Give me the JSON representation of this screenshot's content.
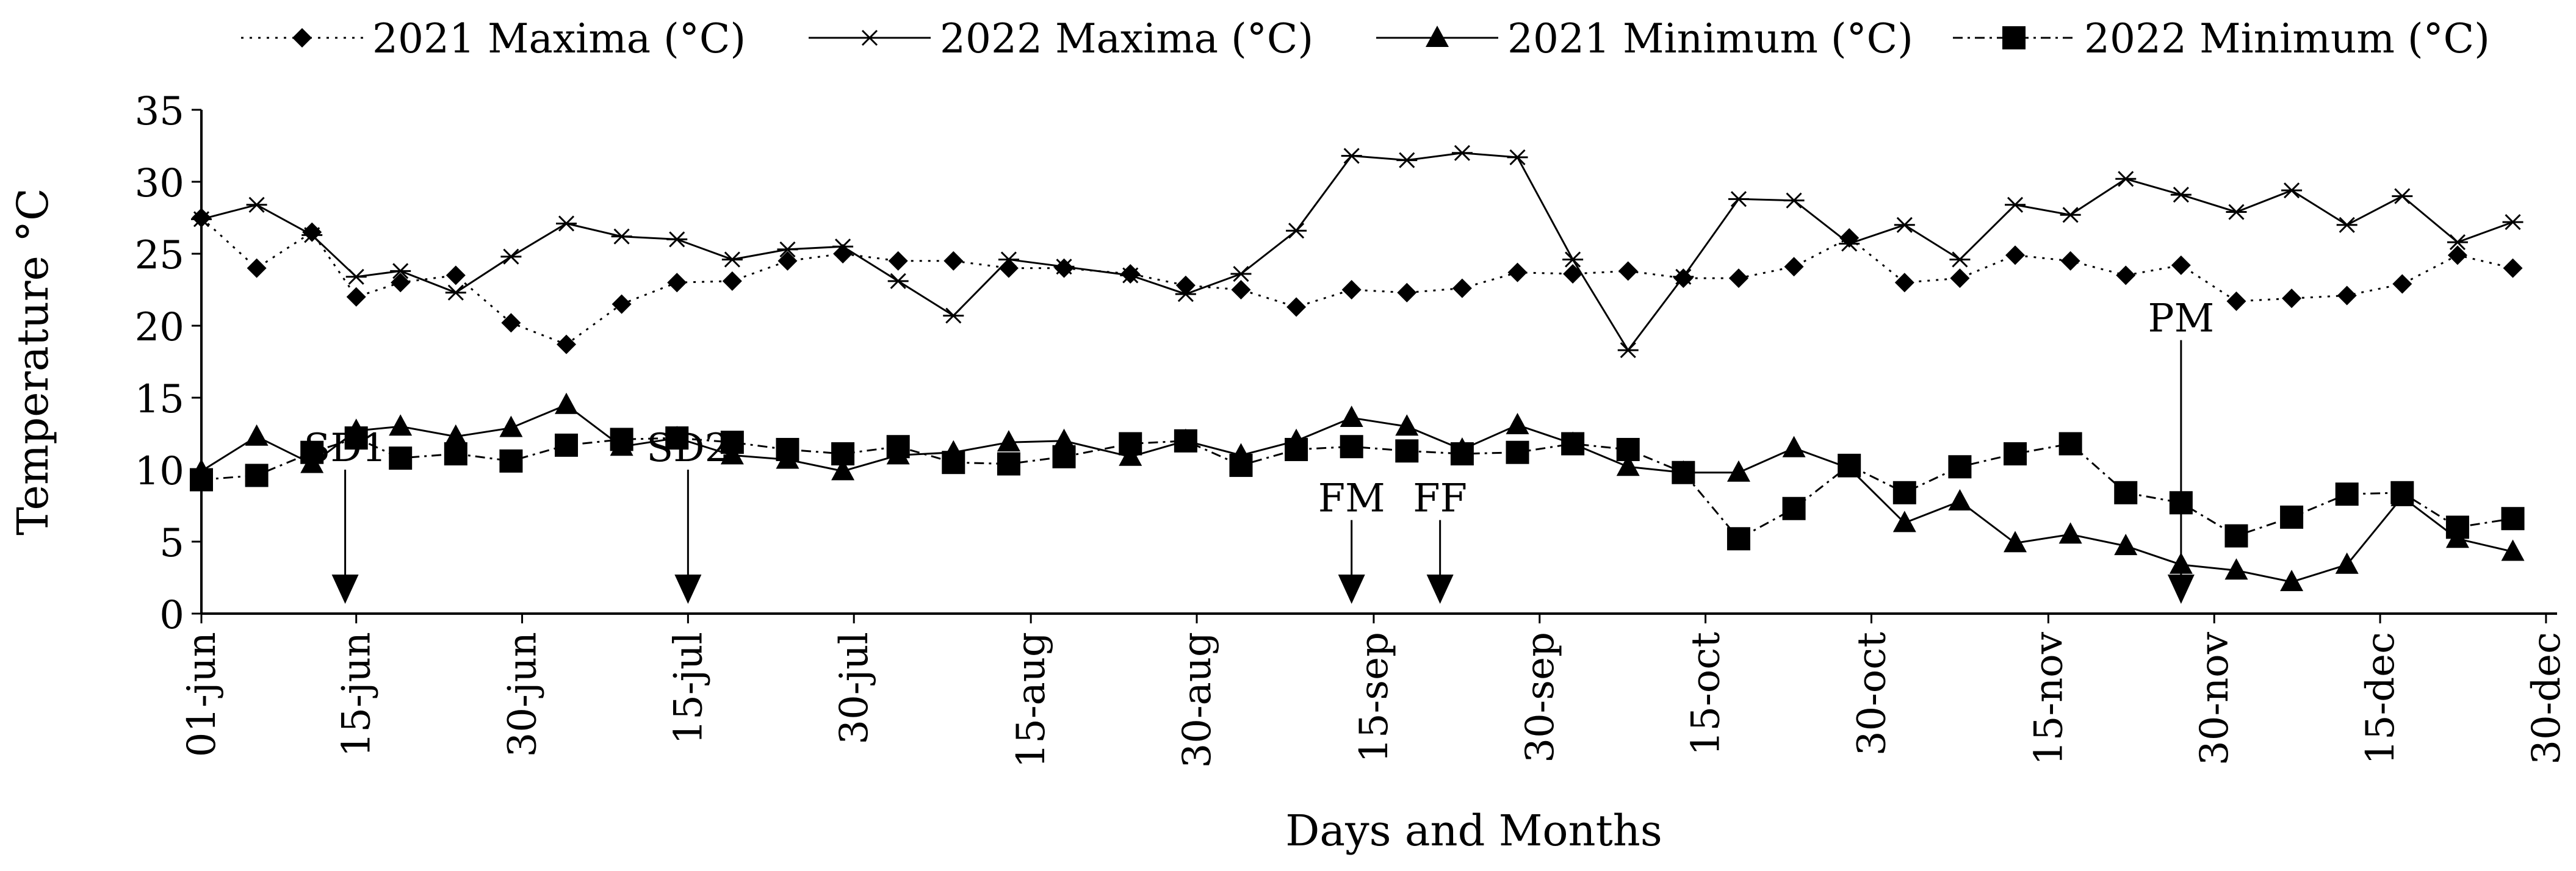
{
  "chart_data": {
    "type": "line",
    "title": "",
    "xlabel": "Days and Months",
    "ylabel": "Temperature °C",
    "ylim": [
      0,
      35
    ],
    "yticks": [
      0,
      5,
      10,
      15,
      20,
      25,
      30,
      35
    ],
    "x_tick_labels": [
      "01-jun",
      "15-jun",
      "30-jun",
      "15-jul",
      "30-jul",
      "15-aug",
      "30-aug",
      "15-sep",
      "30-sep",
      "15-oct",
      "30-oct",
      "15-nov",
      "30-nov",
      "15-dec",
      "30-dec"
    ],
    "x_tick_days": [
      0,
      14,
      29,
      44,
      59,
      75,
      90,
      106,
      121,
      136,
      151,
      167,
      182,
      197,
      212
    ],
    "xlim": [
      0,
      213
    ],
    "legend_position": "top",
    "series": [
      {
        "name": "2021 Maxima (°C)",
        "marker": "diamond",
        "line": "dotted",
        "days": [
          0,
          5,
          10,
          14,
          18,
          23,
          28,
          33,
          38,
          43,
          48,
          53,
          58,
          63,
          68,
          73,
          78,
          84,
          89,
          94,
          99,
          104,
          109,
          114,
          119,
          124,
          129,
          134,
          139,
          144,
          149,
          154,
          159,
          164,
          169,
          174,
          179,
          184,
          189,
          194,
          199,
          204,
          209
        ],
        "values": [
          27.5,
          24.0,
          26.5,
          22.0,
          23.0,
          23.5,
          20.2,
          18.7,
          21.5,
          23.0,
          23.1,
          24.5,
          25.0,
          24.5,
          24.5,
          24.0,
          24.0,
          23.6,
          22.8,
          22.5,
          21.3,
          22.5,
          22.3,
          22.6,
          23.7,
          23.6,
          23.8,
          23.3,
          23.3,
          24.1,
          26.1,
          23.0,
          23.3,
          24.9,
          24.5,
          23.5,
          24.2,
          21.7,
          21.9,
          22.1,
          22.9,
          24.9,
          24.0
        ]
      },
      {
        "name": "2022 Maxima (°C)",
        "marker": "star",
        "line": "solid",
        "days": [
          0,
          5,
          10,
          14,
          18,
          23,
          28,
          33,
          38,
          43,
          48,
          53,
          58,
          63,
          68,
          73,
          78,
          84,
          89,
          94,
          99,
          104,
          109,
          114,
          119,
          124,
          129,
          134,
          139,
          144,
          149,
          154,
          159,
          164,
          169,
          174,
          179,
          184,
          189,
          194,
          199,
          204,
          209
        ],
        "values": [
          27.4,
          28.4,
          26.3,
          23.4,
          23.8,
          22.3,
          24.8,
          27.1,
          26.2,
          26.0,
          24.6,
          25.3,
          25.5,
          23.1,
          20.7,
          24.6,
          24.1,
          23.5,
          22.2,
          23.6,
          26.6,
          31.8,
          31.5,
          32.0,
          31.7,
          24.6,
          18.3,
          23.4,
          28.8,
          28.7,
          25.7,
          27.0,
          24.6,
          28.4,
          27.7,
          30.2,
          29.1,
          27.9,
          29.4,
          27.0,
          29.0,
          25.8,
          27.2
        ]
      },
      {
        "name": "2021 Minimum (°C)",
        "marker": "triangle",
        "line": "solid",
        "days": [
          0,
          5,
          10,
          14,
          18,
          23,
          28,
          33,
          38,
          43,
          48,
          53,
          58,
          63,
          68,
          73,
          78,
          84,
          89,
          94,
          99,
          104,
          109,
          114,
          119,
          124,
          129,
          134,
          139,
          144,
          149,
          154,
          159,
          164,
          169,
          174,
          179,
          184,
          189,
          194,
          199,
          204,
          209
        ],
        "values": [
          9.9,
          12.3,
          10.4,
          12.7,
          13.0,
          12.3,
          12.9,
          14.5,
          11.6,
          12.2,
          11.0,
          10.7,
          9.9,
          11.0,
          11.2,
          11.9,
          12.0,
          10.9,
          12.0,
          11.0,
          12.0,
          13.6,
          13.0,
          11.4,
          13.1,
          11.8,
          10.2,
          9.8,
          9.8,
          11.5,
          10.1,
          6.3,
          7.8,
          4.9,
          5.5,
          4.7,
          3.4,
          3.0,
          2.2,
          3.4,
          8.1,
          5.2,
          4.3
        ]
      },
      {
        "name": "2022 Minimum (°C)",
        "marker": "square",
        "line": "dashdot",
        "days": [
          0,
          5,
          10,
          14,
          18,
          23,
          28,
          33,
          38,
          43,
          48,
          53,
          58,
          63,
          68,
          73,
          78,
          84,
          89,
          94,
          99,
          104,
          109,
          114,
          119,
          124,
          129,
          134,
          139,
          144,
          149,
          154,
          159,
          164,
          169,
          174,
          179,
          184,
          189,
          194,
          199,
          204,
          209
        ],
        "values": [
          9.3,
          9.6,
          11.2,
          12.2,
          10.8,
          11.1,
          10.6,
          11.7,
          12.1,
          12.2,
          11.9,
          11.4,
          11.1,
          11.6,
          10.5,
          10.4,
          10.9,
          11.8,
          12.0,
          10.3,
          11.4,
          11.6,
          11.3,
          11.1,
          11.2,
          11.8,
          11.4,
          9.8,
          5.2,
          7.3,
          10.3,
          8.4,
          10.2,
          11.1,
          11.8,
          8.4,
          7.7,
          5.4,
          6.7,
          8.3,
          8.4,
          6.0,
          6.6
        ]
      }
    ],
    "annotations": [
      {
        "label": "SD1",
        "day": 13,
        "value": 10.0
      },
      {
        "label": "SD2",
        "day": 44,
        "value": 10.0
      },
      {
        "label": "FM",
        "day": 104,
        "value": 6.5
      },
      {
        "label": "FF",
        "day": 112,
        "value": 6.5
      },
      {
        "label": "PM",
        "day": 179,
        "value": 19.0
      }
    ]
  }
}
